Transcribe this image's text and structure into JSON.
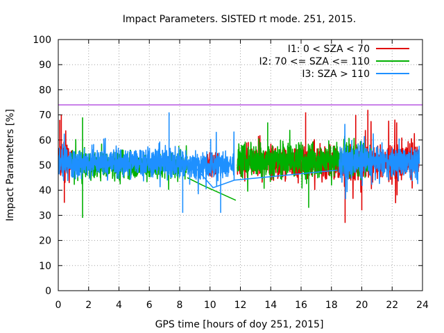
{
  "chart_data": {
    "type": "line",
    "title": "Impact Parameters. SISTED rt mode. 251, 2015.",
    "xlabel": "GPS time [hours of doy 251, 2015]",
    "ylabel": "Impact Parameters [%]",
    "xlim": [
      0,
      24
    ],
    "ylim": [
      0,
      100
    ],
    "x_ticks": [
      "0",
      "2",
      "4",
      "6",
      "8",
      "10",
      "12",
      "14",
      "16",
      "18",
      "20",
      "22",
      "24"
    ],
    "y_ticks": [
      "0",
      "10",
      "20",
      "30",
      "40",
      "50",
      "60",
      "70",
      "80",
      "90",
      "100"
    ],
    "grid": true,
    "legend_position": "top-right",
    "threshold": {
      "value": 74,
      "color": "#9400d3"
    },
    "series": [
      {
        "name": "I1: 0 < SZA < 70",
        "color": "#e00000",
        "segments": [
          {
            "x_start": 0.0,
            "x_end": 0.9,
            "center": 51,
            "spread": 10
          },
          {
            "x_start": 9.8,
            "x_end": 10.6,
            "center": 51,
            "spread": 8
          },
          {
            "x_start": 11.8,
            "x_end": 23.8,
            "center": 51,
            "spread": 10
          }
        ],
        "notable_points": [
          {
            "x": 0.1,
            "y": 68
          },
          {
            "x": 0.2,
            "y": 70
          },
          {
            "x": 0.4,
            "y": 35
          },
          {
            "x": 16.3,
            "y": 71
          },
          {
            "x": 18.9,
            "y": 27
          },
          {
            "x": 19.6,
            "y": 70
          },
          {
            "x": 20.0,
            "y": 32
          },
          {
            "x": 20.4,
            "y": 72
          },
          {
            "x": 22.3,
            "y": 67
          }
        ]
      },
      {
        "name": "I2: 70 <= SZA <= 110",
        "color": "#00b000",
        "segments": [
          {
            "x_start": 0.9,
            "x_end": 8.5,
            "center": 50,
            "spread": 8
          },
          {
            "x_start": 11.8,
            "x_end": 20.7,
            "center": 52,
            "spread": 10
          }
        ],
        "connectors": [
          {
            "points": [
              [
                8.5,
                45
              ],
              [
                9.5,
                42
              ],
              [
                11.7,
                36
              ]
            ]
          }
        ],
        "notable_points": [
          {
            "x": 1.6,
            "y": 29
          },
          {
            "x": 1.6,
            "y": 69
          },
          {
            "x": 13.8,
            "y": 67
          },
          {
            "x": 16.5,
            "y": 33
          }
        ]
      },
      {
        "name": "I3: SZA > 110",
        "color": "#1e90ff",
        "segments": [
          {
            "x_start": 0.0,
            "x_end": 8.6,
            "center": 51,
            "spread": 9
          },
          {
            "x_start": 8.6,
            "x_end": 11.6,
            "center": 50,
            "spread": 8
          },
          {
            "x_start": 18.5,
            "x_end": 23.8,
            "center": 51,
            "spread": 9
          }
        ],
        "connectors": [
          {
            "points": [
              [
                8.6,
                52
              ],
              [
                10.2,
                41
              ],
              [
                11.6,
                44
              ],
              [
                18.4,
                48
              ]
            ]
          }
        ],
        "notable_points": [
          {
            "x": 7.3,
            "y": 71
          },
          {
            "x": 8.2,
            "y": 31
          },
          {
            "x": 10.7,
            "y": 31
          }
        ]
      }
    ]
  }
}
